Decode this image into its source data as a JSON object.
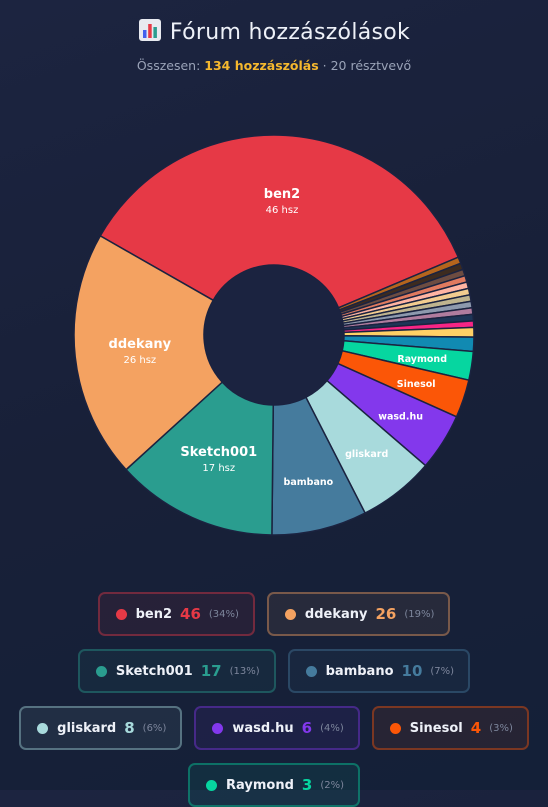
{
  "header": {
    "title": "Fórum hozzászólások",
    "subtitle_prefix": "Összesen:",
    "subtitle_total": "134 hozzászólás",
    "subtitle_suffix": "· 20 résztvevő"
  },
  "colors": {
    "background": "#1a2240",
    "hole": "#1b2340",
    "accent": "#f5b82e"
  },
  "chart_data": {
    "type": "pie",
    "donut": true,
    "title": "Fórum hozzászólások",
    "total": 134,
    "participants": 20,
    "slices": [
      {
        "label": "ben2",
        "value": 46,
        "color": "#e63946",
        "sub": "46 hsz",
        "big": true
      },
      {
        "label": "Raymond",
        "value": 3,
        "color": "#06d6a0",
        "short": "Raymond"
      },
      {
        "label": "Sinesol",
        "value": 4,
        "color": "#fb5607",
        "short": "Sinesol"
      },
      {
        "label": "wasd.hu",
        "value": 6,
        "color": "#8338ec",
        "short": "wasd.hu"
      },
      {
        "label": "gliskard",
        "value": 8,
        "color": "#a8dadc",
        "short": "gliskard"
      },
      {
        "label": "bambano",
        "value": 10,
        "color": "#457b9d",
        "short": "bambano"
      },
      {
        "label": "Sketch001",
        "value": 17,
        "color": "#2a9d8f",
        "sub": "17 hsz",
        "big": true
      },
      {
        "label": "ddekany",
        "value": 26,
        "color": "#f4a261",
        "sub": "26 hsz",
        "big": true
      }
    ],
    "small_slices": [
      {
        "value": 0.68,
        "color": "#b5651d"
      },
      {
        "value": 0.68,
        "color": "#3d2b1f"
      },
      {
        "value": 0.68,
        "color": "#6d4c41"
      },
      {
        "value": 0.68,
        "color": "#e07a5f"
      },
      {
        "value": 0.68,
        "color": "#ffb4a2"
      },
      {
        "value": 0.68,
        "color": "#f2cc8f"
      },
      {
        "value": 0.68,
        "color": "#bfb48f"
      },
      {
        "value": 0.68,
        "color": "#8d99ae"
      },
      {
        "value": 0.68,
        "color": "#b07c9e"
      },
      {
        "value": 0.68,
        "color": "#1d3557"
      },
      {
        "value": 0.68,
        "color": "#f72585"
      },
      {
        "value": 1.0,
        "color": "#ffd166"
      },
      {
        "value": 1.5,
        "color": "#118ab2"
      }
    ]
  },
  "legend": [
    {
      "name": "ben2",
      "count": "46",
      "pct": "(34%)",
      "color": "#e63946"
    },
    {
      "name": "ddekany",
      "count": "26",
      "pct": "(19%)",
      "color": "#f4a261"
    },
    {
      "name": "Sketch001",
      "count": "17",
      "pct": "(13%)",
      "color": "#2a9d8f"
    },
    {
      "name": "bambano",
      "count": "10",
      "pct": "(7%)",
      "color": "#457b9d"
    },
    {
      "name": "gliskard",
      "count": "8",
      "pct": "(6%)",
      "color": "#a8dadc"
    },
    {
      "name": "wasd.hu",
      "count": "6",
      "pct": "(4%)",
      "color": "#8338ec"
    },
    {
      "name": "Sinesol",
      "count": "4",
      "pct": "(3%)",
      "color": "#fb5607"
    },
    {
      "name": "Raymond",
      "count": "3",
      "pct": "(2%)",
      "color": "#06d6a0"
    }
  ]
}
